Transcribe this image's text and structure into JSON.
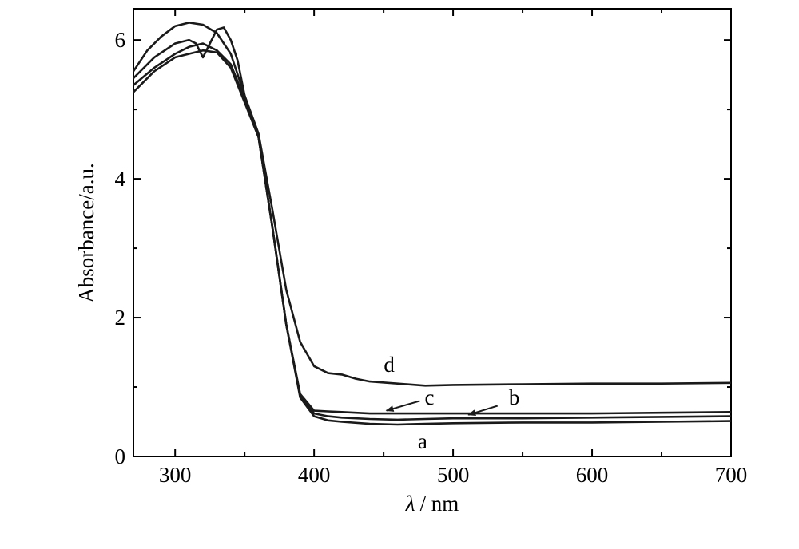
{
  "chart_data": {
    "type": "line",
    "title": "",
    "xlabel": "λ / nm",
    "xlabel_symbol": "λ",
    "xlabel_unit": "/ nm",
    "ylabel": "Absorbance/a.u.",
    "xlim": [
      270,
      700
    ],
    "ylim": [
      0,
      6.45
    ],
    "xticks": [
      300,
      400,
      500,
      600,
      700
    ],
    "yticks": [
      0,
      2,
      4,
      6
    ],
    "grid": false,
    "legend": "none",
    "line_color": "#1a1a1a",
    "series": [
      {
        "name": "a",
        "x": [
          270,
          285,
          300,
          310,
          320,
          330,
          340,
          350,
          360,
          370,
          380,
          390,
          400,
          410,
          420,
          440,
          460,
          480,
          500,
          550,
          600,
          650,
          700
        ],
        "y": [
          5.25,
          5.55,
          5.75,
          5.8,
          5.85,
          5.82,
          5.6,
          5.1,
          4.6,
          3.3,
          1.9,
          0.85,
          0.58,
          0.52,
          0.5,
          0.47,
          0.46,
          0.47,
          0.48,
          0.49,
          0.49,
          0.5,
          0.51
        ]
      },
      {
        "name": "b",
        "x": [
          270,
          285,
          300,
          310,
          320,
          330,
          340,
          350,
          360,
          370,
          380,
          390,
          400,
          410,
          420,
          440,
          460,
          480,
          500,
          550,
          600,
          650,
          700
        ],
        "y": [
          5.35,
          5.6,
          5.8,
          5.9,
          5.95,
          5.85,
          5.65,
          5.15,
          4.6,
          3.3,
          1.9,
          0.88,
          0.62,
          0.58,
          0.56,
          0.54,
          0.53,
          0.54,
          0.55,
          0.55,
          0.56,
          0.57,
          0.58
        ]
      },
      {
        "name": "c",
        "x": [
          270,
          285,
          300,
          310,
          315,
          320,
          325,
          330,
          335,
          340,
          345,
          350,
          360,
          370,
          380,
          390,
          400,
          410,
          420,
          440,
          460,
          480,
          500,
          550,
          600,
          650,
          700
        ],
        "y": [
          5.45,
          5.75,
          5.95,
          6.0,
          5.95,
          5.75,
          5.95,
          6.15,
          6.18,
          6.0,
          5.7,
          5.2,
          4.6,
          3.3,
          1.9,
          0.9,
          0.66,
          0.65,
          0.64,
          0.62,
          0.62,
          0.62,
          0.62,
          0.62,
          0.62,
          0.63,
          0.64
        ]
      },
      {
        "name": "d",
        "x": [
          270,
          280,
          290,
          300,
          310,
          320,
          330,
          340,
          350,
          360,
          370,
          380,
          390,
          400,
          410,
          420,
          430,
          440,
          460,
          480,
          500,
          550,
          600,
          650,
          700
        ],
        "y": [
          5.55,
          5.85,
          6.05,
          6.2,
          6.25,
          6.22,
          6.1,
          5.8,
          5.2,
          4.65,
          3.55,
          2.4,
          1.65,
          1.3,
          1.2,
          1.18,
          1.12,
          1.08,
          1.05,
          1.02,
          1.03,
          1.04,
          1.05,
          1.05,
          1.06
        ]
      }
    ],
    "annotations": [
      {
        "text": "a",
        "x": 478,
        "y": 0.22,
        "arrow": false
      },
      {
        "text": "b",
        "x": 544,
        "y": 0.85,
        "arrow": true,
        "arrow_from": [
          532,
          0.73
        ],
        "arrow_to": [
          511,
          0.6
        ]
      },
      {
        "text": "c",
        "x": 483,
        "y": 0.85,
        "arrow": true,
        "arrow_from": [
          476,
          0.8
        ],
        "arrow_to": [
          452,
          0.66
        ]
      },
      {
        "text": "d",
        "x": 454,
        "y": 1.32,
        "arrow": false
      }
    ]
  }
}
